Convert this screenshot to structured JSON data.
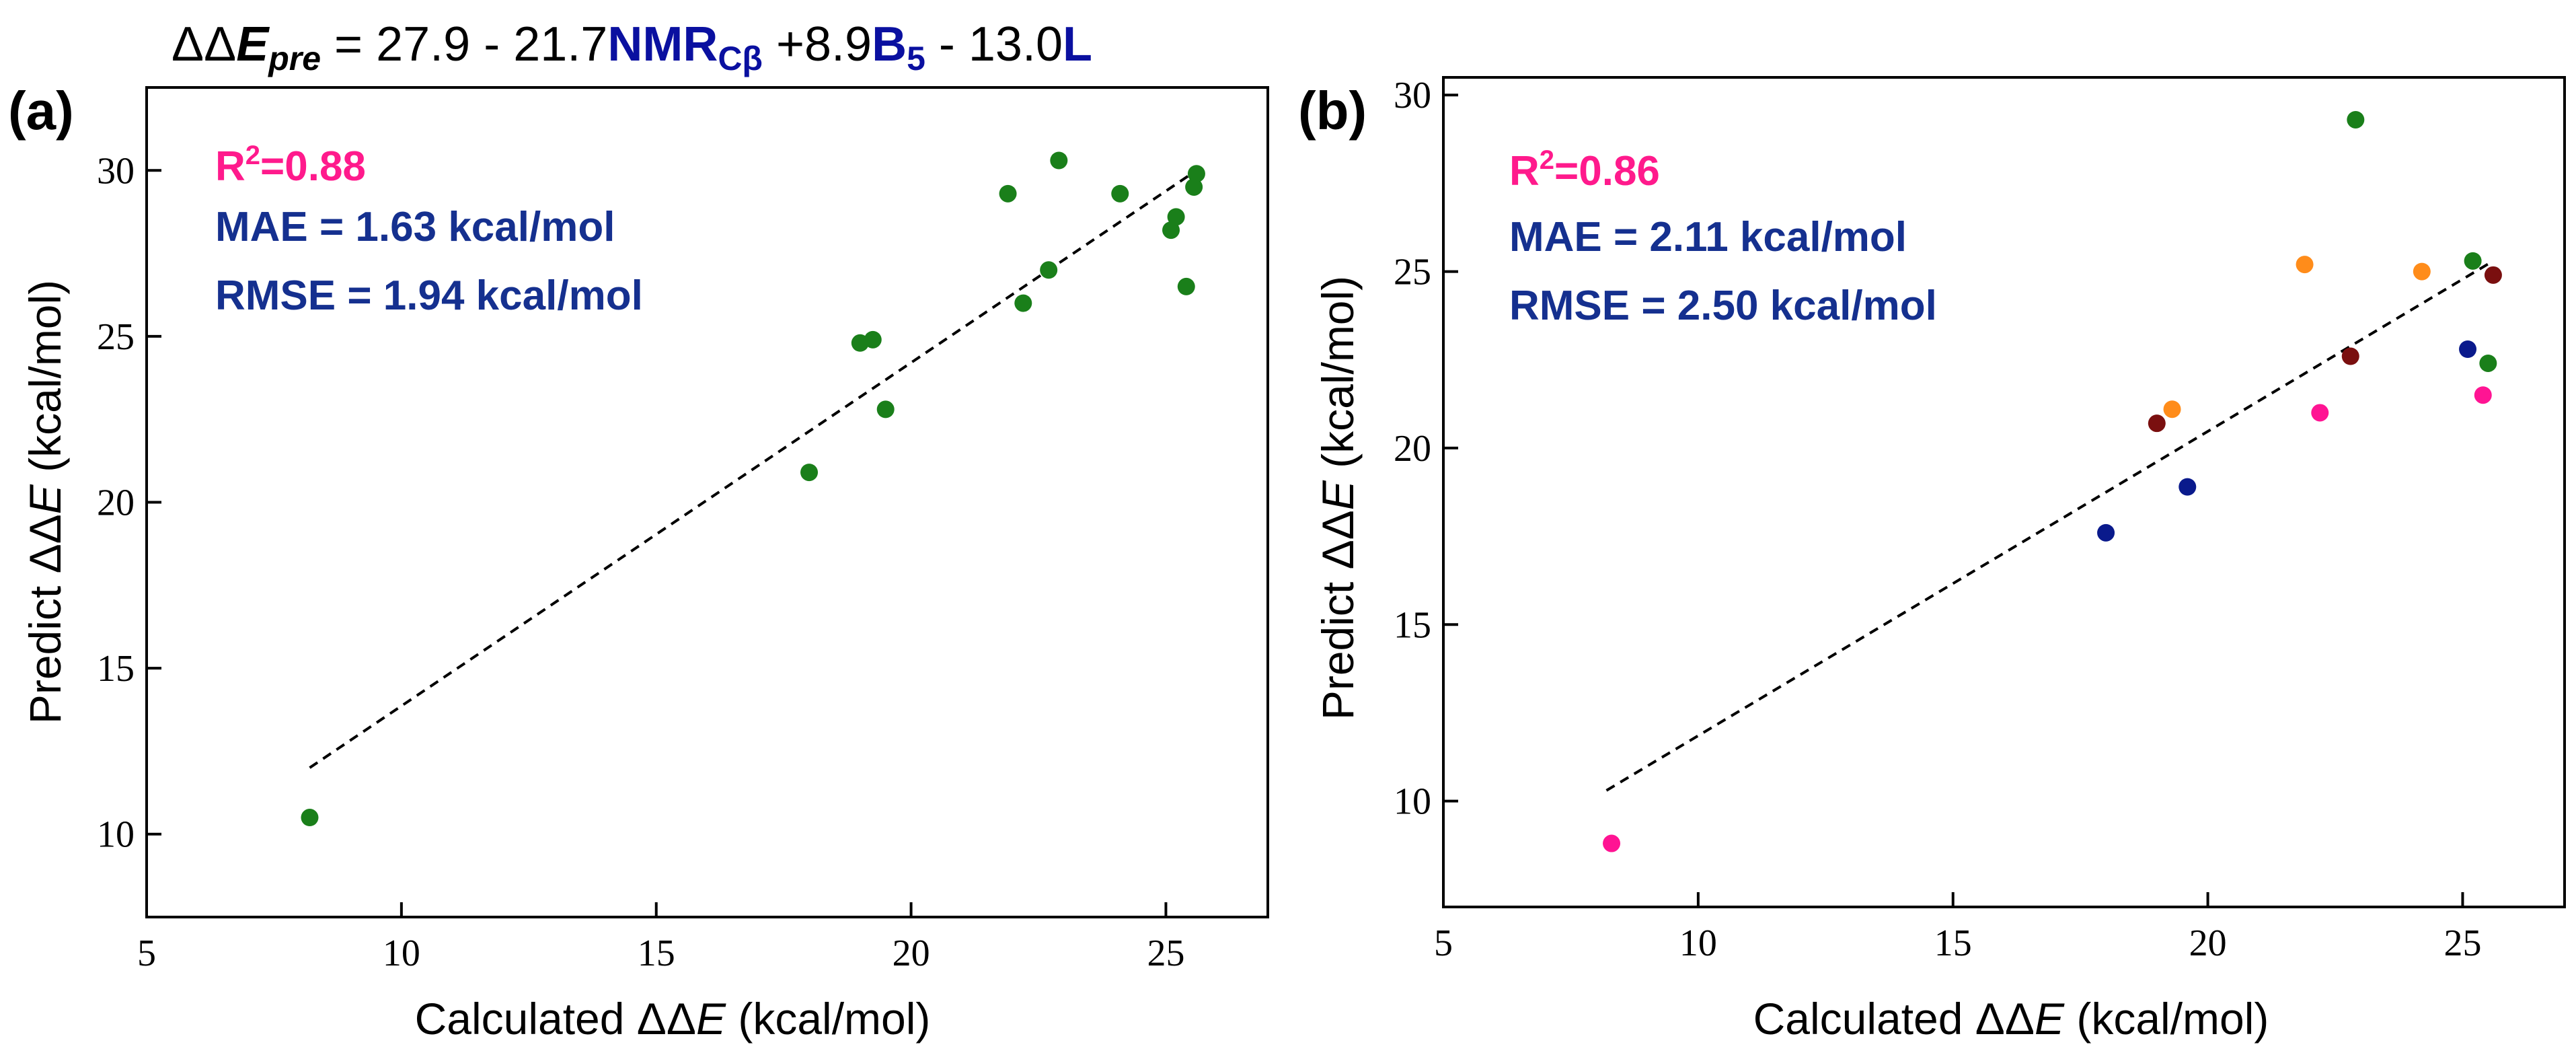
{
  "equation": {
    "prefix": "ΔΔ",
    "lhs_var": "E",
    "lhs_sub": "pre",
    "eq": " = 27.9 - 21.7",
    "t1": "NMR",
    "t1_sub": "Cβ",
    "mid1": " +8.9",
    "t2": "B",
    "t2_sub": "5",
    "mid2": " - 13.0",
    "t3": "L"
  },
  "colors": {
    "green": "#1a7f1a",
    "orange": "#ff8c1a",
    "navy": "#0a1a8c",
    "darkred": "#7a0f0f",
    "pink": "#ff1493",
    "stats_pink": "#ff1a8c",
    "stats_blue": "#15308f",
    "eq_blue": "#0a10a0"
  },
  "chart_data": [
    {
      "type": "scatter",
      "panel_label": "(a)",
      "xlabel_text": "Calculated  ΔΔ",
      "xlabel_var": "E",
      "xlabel_unit": " (kcal/mol)",
      "ylabel_text": "Predict  ΔΔ",
      "ylabel_var": "E",
      "ylabel_unit": " (kcal/mol)",
      "xlim": [
        5,
        27
      ],
      "ylim": [
        7.5,
        32.5
      ],
      "xticks": [
        "5",
        "10",
        "15",
        "20",
        "25"
      ],
      "yticks": [
        "10",
        "15",
        "20",
        "25",
        "30"
      ],
      "stats": {
        "r2_label": "R",
        "r2_sup": "2",
        "r2_value": "=0.88",
        "mae": "MAE = 1.63 kcal/mol",
        "rmse": "RMSE = 1.94 kcal/mol"
      },
      "fit_line": [
        [
          8.2,
          12.0
        ],
        [
          25.6,
          30.0
        ]
      ],
      "points": [
        {
          "x": 8.2,
          "y": 10.5,
          "color": "green"
        },
        {
          "x": 18.0,
          "y": 20.9,
          "color": "green"
        },
        {
          "x": 19.0,
          "y": 24.8,
          "color": "green"
        },
        {
          "x": 19.25,
          "y": 24.9,
          "color": "green"
        },
        {
          "x": 19.5,
          "y": 22.8,
          "color": "green"
        },
        {
          "x": 21.9,
          "y": 29.3,
          "color": "green"
        },
        {
          "x": 22.2,
          "y": 26.0,
          "color": "green"
        },
        {
          "x": 22.7,
          "y": 27.0,
          "color": "green"
        },
        {
          "x": 22.9,
          "y": 30.3,
          "color": "green"
        },
        {
          "x": 24.1,
          "y": 29.3,
          "color": "green"
        },
        {
          "x": 25.1,
          "y": 28.2,
          "color": "green"
        },
        {
          "x": 25.2,
          "y": 28.6,
          "color": "green"
        },
        {
          "x": 25.4,
          "y": 26.5,
          "color": "green"
        },
        {
          "x": 25.55,
          "y": 29.5,
          "color": "green"
        },
        {
          "x": 25.6,
          "y": 29.9,
          "color": "green"
        }
      ]
    },
    {
      "type": "scatter",
      "panel_label": "(b)",
      "xlabel_text": "Calculated  ΔΔ",
      "xlabel_var": "E",
      "xlabel_unit": " (kcal/mol)",
      "ylabel_text": "Predict  ΔΔ",
      "ylabel_var": "E",
      "ylabel_unit": " (kcal/mol)",
      "xlim": [
        5,
        27
      ],
      "ylim": [
        7.0,
        30.5
      ],
      "xticks": [
        "5",
        "10",
        "15",
        "20",
        "25"
      ],
      "yticks": [
        "10",
        "15",
        "20",
        "25",
        "30"
      ],
      "stats": {
        "r2_label": "R",
        "r2_sup": "2",
        "r2_value": "=0.86",
        "mae": "MAE = 2.11 kcal/mol",
        "rmse": "RMSE = 2.50 kcal/mol"
      },
      "fit_line": [
        [
          8.2,
          10.3
        ],
        [
          25.6,
          25.3
        ]
      ],
      "points": [
        {
          "x": 8.3,
          "y": 8.8,
          "color": "pink"
        },
        {
          "x": 18.0,
          "y": 17.6,
          "color": "navy"
        },
        {
          "x": 19.0,
          "y": 20.7,
          "color": "darkred"
        },
        {
          "x": 19.3,
          "y": 21.1,
          "color": "orange"
        },
        {
          "x": 19.6,
          "y": 18.9,
          "color": "navy"
        },
        {
          "x": 21.9,
          "y": 25.2,
          "color": "orange"
        },
        {
          "x": 22.2,
          "y": 21.0,
          "color": "pink"
        },
        {
          "x": 22.8,
          "y": 22.6,
          "color": "darkred"
        },
        {
          "x": 22.9,
          "y": 29.3,
          "color": "green"
        },
        {
          "x": 24.2,
          "y": 25.0,
          "color": "orange"
        },
        {
          "x": 25.1,
          "y": 22.8,
          "color": "navy"
        },
        {
          "x": 25.2,
          "y": 25.3,
          "color": "green"
        },
        {
          "x": 25.4,
          "y": 21.5,
          "color": "pink"
        },
        {
          "x": 25.5,
          "y": 22.4,
          "color": "green"
        },
        {
          "x": 25.6,
          "y": 24.9,
          "color": "darkred"
        }
      ]
    }
  ]
}
